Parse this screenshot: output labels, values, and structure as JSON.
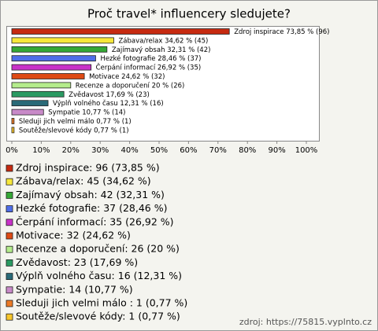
{
  "chart_data": {
    "type": "hbar",
    "title": "Proč travel* influencery sledujete?",
    "categories": [
      "Zdroj inspirace",
      "Zábava/relax",
      "Zajímavý obsah",
      "Hezké fotografie",
      "Čerpání informací",
      "Motivace",
      "Recenze a doporučení",
      "Zvědavost",
      "Výplň volného času",
      "Sympatie",
      "Sleduji jich velmi málo",
      "Soutěže/slevové kódy"
    ],
    "values": [
      73.85,
      34.62,
      32.31,
      28.46,
      26.92,
      24.62,
      20,
      17.69,
      12.31,
      10.77,
      0.77,
      0.77
    ],
    "value_labels": [
      "73,85 % (96)",
      "34,62 % (45)",
      "32,31 % (42)",
      "28,46 % (37)",
      "26,92 % (35)",
      "24,62 % (32)",
      "20 % (26)",
      "17,69 % (23)",
      "12,31 % (16)",
      "10,77 % (14)",
      "0,77 % (1)",
      "0,77 % (1)"
    ],
    "colors": [
      "#c62a10",
      "#f7e83a",
      "#35a835",
      "#4f6ee8",
      "#c832c8",
      "#de4a14",
      "#b4ec8c",
      "#2a9a62",
      "#2a6a78",
      "#c88ac8",
      "#ec7a26",
      "#f8c62a"
    ],
    "xlim": [
      0,
      100
    ],
    "xticks": [
      {
        "value": 0,
        "label": "0%"
      },
      {
        "value": 10,
        "label": "10%"
      },
      {
        "value": 20,
        "label": "20%"
      },
      {
        "value": 30,
        "label": "30%"
      },
      {
        "value": 40,
        "label": "40%"
      },
      {
        "value": 50,
        "label": "50%"
      },
      {
        "value": 60,
        "label": "60%"
      },
      {
        "value": 70,
        "label": "70%"
      },
      {
        "value": 80,
        "label": "80%"
      },
      {
        "value": 90,
        "label": "90%"
      },
      {
        "value": 100,
        "label": "100%"
      }
    ],
    "legend_labels": [
      "Zdroj inspirace: 96 (73,85 %)",
      "Zábava/relax: 45 (34,62 %)",
      "Zajímavý obsah: 42 (32,31 %)",
      "Hezké fotografie: 37 (28,46 %)",
      "Čerpání informací: 35 (26,92 %)",
      "Motivace: 32 (24,62 %)",
      "Recenze a doporučení: 26 (20 %)",
      "Zvědavost: 23 (17,69 %)",
      "Výplň volného času: 16 (12,31 %)",
      "Sympatie: 14 (10,77 %)",
      "Sleduji jich velmi málo : 1 (0,77 %)",
      "Soutěže/slevové kódy: 1 (0,77 %)"
    ],
    "source": "zdroj: https://75815.vyplnto.cz"
  }
}
